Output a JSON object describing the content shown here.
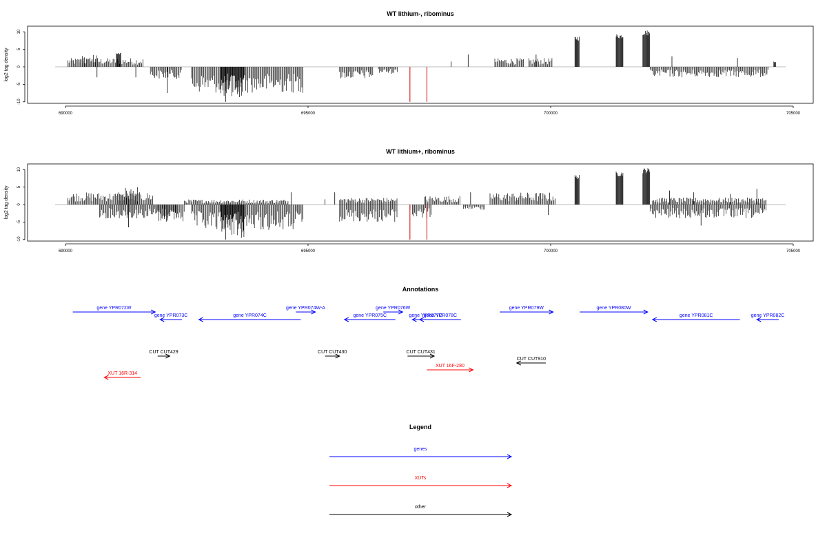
{
  "colors": {
    "gene": "#0000ff",
    "xut": "#ff0000",
    "other": "#000000",
    "bar": "#000000",
    "marker": "#cc0000",
    "baseline": "#bbbbbb"
  },
  "chart_data": [
    {
      "type": "bar",
      "title": "WT lithium-, ribominus",
      "ylabel": "log2 tag density",
      "xlim": [
        690000,
        705000
      ],
      "ylim": [
        -10,
        11
      ],
      "x_ticks": [
        "690000",
        "695000",
        "700000",
        "705000"
      ],
      "y_ticks": [
        "10",
        "5",
        "0",
        "-5",
        "-10"
      ],
      "red_markers_x": [
        697100,
        697450
      ],
      "segments": [
        {
          "x0": 690050,
          "x1": 691600,
          "y": 2.5
        },
        {
          "x0": 690300,
          "x1": 690700,
          "y": 3.5
        },
        {
          "x0": 691050,
          "x1": 691150,
          "y": 4.0
        },
        {
          "x0": 691750,
          "x1": 692400,
          "y": -3.5
        },
        {
          "x0": 692600,
          "x1": 694900,
          "y": -7.5
        },
        {
          "x0": 693200,
          "x1": 693700,
          "y": -9.0
        },
        {
          "x0": 695650,
          "x1": 696350,
          "y": -3.5
        },
        {
          "x0": 696450,
          "x1": 696850,
          "y": -2.0
        },
        {
          "x0": 698850,
          "x1": 699450,
          "y": 2.5
        },
        {
          "x0": 699550,
          "x1": 700050,
          "y": 2.5
        },
        {
          "x0": 700500,
          "x1": 700600,
          "y": 8.8
        },
        {
          "x0": 701350,
          "x1": 701500,
          "y": 9.5
        },
        {
          "x0": 701900,
          "x1": 702050,
          "y": 10.5
        },
        {
          "x0": 702050,
          "x1": 704500,
          "y": -3.0
        },
        {
          "x0": 704600,
          "x1": 704650,
          "y": 1.5
        }
      ],
      "singles": [
        {
          "x": 690650,
          "y": -3.0
        },
        {
          "x": 691450,
          "y": -3.0
        },
        {
          "x": 692100,
          "y": -7.5
        },
        {
          "x": 693300,
          "y": -10.0
        },
        {
          "x": 697950,
          "y": 1.5
        },
        {
          "x": 698300,
          "y": 3.5
        },
        {
          "x": 699700,
          "y": 3.5
        },
        {
          "x": 702500,
          "y": 3.0
        },
        {
          "x": 703850,
          "y": 2.5
        }
      ]
    },
    {
      "type": "bar",
      "title": "WT lithium+, ribominus",
      "ylabel": "log2 tag density",
      "xlim": [
        690000,
        705000
      ],
      "ylim": [
        -10,
        11
      ],
      "x_ticks": [
        "690000",
        "695000",
        "700000",
        "705000"
      ],
      "y_ticks": [
        "10",
        "5",
        "0",
        "-5",
        "-10"
      ],
      "red_markers_x": [
        697100,
        697450
      ],
      "segments": [
        {
          "x0": 690050,
          "x1": 691800,
          "y": 3.5
        },
        {
          "x0": 691100,
          "x1": 691500,
          "y": 5.0
        },
        {
          "x0": 690700,
          "x1": 692300,
          "y": -4.0
        },
        {
          "x0": 691900,
          "x1": 692450,
          "y": -5.0
        },
        {
          "x0": 692450,
          "x1": 694600,
          "y": 1.5
        },
        {
          "x0": 692600,
          "x1": 694900,
          "y": -7.5
        },
        {
          "x0": 693200,
          "x1": 693700,
          "y": -9.5
        },
        {
          "x0": 695650,
          "x1": 696850,
          "y": -5.0
        },
        {
          "x0": 695650,
          "x1": 696850,
          "y": 2.0
        },
        {
          "x0": 697150,
          "x1": 697550,
          "y": -4.0
        },
        {
          "x0": 697400,
          "x1": 698150,
          "y": 2.5
        },
        {
          "x0": 698200,
          "x1": 698650,
          "y": -1.5
        },
        {
          "x0": 698750,
          "x1": 700100,
          "y": 3.5
        },
        {
          "x0": 700500,
          "x1": 700600,
          "y": 8.5
        },
        {
          "x0": 701350,
          "x1": 701500,
          "y": 9.5
        },
        {
          "x0": 701900,
          "x1": 702050,
          "y": 10.5
        },
        {
          "x0": 702050,
          "x1": 704450,
          "y": -4.0
        },
        {
          "x0": 702100,
          "x1": 704450,
          "y": 2.0
        }
      ],
      "singles": [
        {
          "x": 691300,
          "y": -6.5
        },
        {
          "x": 693300,
          "y": -10.0
        },
        {
          "x": 694650,
          "y": 3.5
        },
        {
          "x": 695350,
          "y": 1.5
        },
        {
          "x": 695550,
          "y": 3.5
        },
        {
          "x": 697100,
          "y": -1.5
        },
        {
          "x": 698350,
          "y": 3.5
        },
        {
          "x": 699950,
          "y": -3.0
        },
        {
          "x": 702450,
          "y": 4.0
        },
        {
          "x": 702950,
          "y": 3.5
        },
        {
          "x": 703700,
          "y": 3.0
        },
        {
          "x": 703100,
          "y": -6.0
        },
        {
          "x": 704250,
          "y": 4.5
        }
      ]
    }
  ],
  "annotations": {
    "title": "Annotations",
    "genes": [
      {
        "label": "gene YPR072W",
        "x0": 690150,
        "x1": 691850,
        "row": 0,
        "dir": "right"
      },
      {
        "label": "gene YPR073C",
        "x0": 691950,
        "x1": 692400,
        "row": 1,
        "dir": "left"
      },
      {
        "label": "gene YPR074C",
        "x0": 692750,
        "x1": 694850,
        "row": 1,
        "dir": "left"
      },
      {
        "label": "gene YPR074W-A",
        "x0": 694750,
        "x1": 695150,
        "row": 0,
        "dir": "right"
      },
      {
        "label": "gene YPR075C",
        "x0": 695750,
        "x1": 696800,
        "row": 1,
        "dir": "left"
      },
      {
        "label": "gene YPR076W",
        "x0": 696550,
        "x1": 696950,
        "row": 0,
        "dir": "right"
      },
      {
        "label": "gene YPR077C",
        "x0": 697150,
        "x1": 697700,
        "row": 1,
        "dir": "left"
      },
      {
        "label": "gene YPR078C",
        "x0": 697300,
        "x1": 698150,
        "row": 1,
        "dir": "left"
      },
      {
        "label": "gene YPR079W",
        "x0": 698950,
        "x1": 700050,
        "row": 0,
        "dir": "right"
      },
      {
        "label": "gene YPR080W",
        "x0": 700600,
        "x1": 702000,
        "row": 0,
        "dir": "right"
      },
      {
        "label": "gene YPR081C",
        "x0": 702100,
        "x1": 703900,
        "row": 1,
        "dir": "left"
      },
      {
        "label": "gene YPR082C",
        "x0": 704250,
        "x1": 704700,
        "row": 1,
        "dir": "left"
      }
    ],
    "others": [
      {
        "label": "CUT CUT429",
        "x0": 691900,
        "x1": 692150,
        "row": 2,
        "dir": "right"
      },
      {
        "label": "CUT CUT430",
        "x0": 695350,
        "x1": 695650,
        "row": 2,
        "dir": "right"
      },
      {
        "label": "CUT CUT431",
        "x0": 697050,
        "x1": 697600,
        "row": 2,
        "dir": "right"
      },
      {
        "label": "CUT CUT910",
        "x0": 699300,
        "x1": 699900,
        "row": 3,
        "dir": "left"
      }
    ],
    "xuts": [
      {
        "label": "XUT 16F-280",
        "x0": 697450,
        "x1": 698400,
        "row": 4,
        "dir": "right"
      },
      {
        "label": "XUT 16R-314",
        "x0": 690800,
        "x1": 691550,
        "row": 5,
        "dir": "left"
      }
    ]
  },
  "legend": {
    "title": "Legend",
    "items": [
      {
        "label": "genes",
        "kind": "gene"
      },
      {
        "label": "XUTs",
        "kind": "xut"
      },
      {
        "label": "other",
        "kind": "other"
      }
    ]
  }
}
